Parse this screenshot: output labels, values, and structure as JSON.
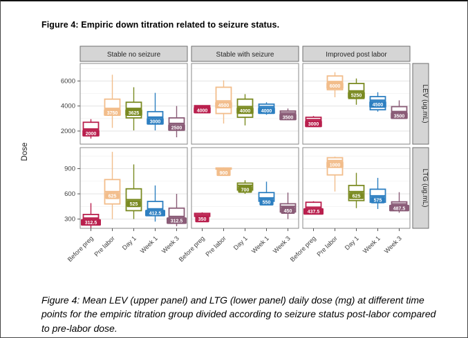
{
  "page": {
    "title": "Figure 4: Empiric down titration related to seizure status.",
    "caption": "Figure 4: Mean LEV (upper panel) and LTG (lower panel) daily dose (mg) at different time points for the empiric titration group divided according to seizure status post-labor compared to pre-labor dose."
  },
  "chart_data": {
    "type": "boxplot",
    "title": "Figure 4: Empiric down titration related to seizure status.",
    "ylabel": "Dose",
    "xlabel": "",
    "grid": true,
    "legend": "none",
    "x_label_rotation": 45,
    "facet_cols": [
      "Stable no seizure",
      "Stable with seizure",
      "Improved post labor"
    ],
    "facet_rows": [
      "LEV (ug.mL)",
      "LTG (ug.mL)"
    ],
    "x_categories": [
      "Before preg",
      "Pre labor",
      "Day 1",
      "Week 1",
      "Week 3"
    ],
    "category_colors": [
      "#b91f4d",
      "#f2bd8b",
      "#7a8a21",
      "#2d7fc1",
      "#8a5c77"
    ],
    "strip_bg": "#d5d5d5",
    "strip_border": "#6e6e6e",
    "panel_border": "#8a8a8a",
    "grid_major_color": "#e6e6e6",
    "grid_minor_color": "#f2f2f2",
    "axis_text_color": "#3d3d3d",
    "rows": [
      {
        "label": "LEV (ug.mL)",
        "ticks": [
          2000,
          4000,
          6000
        ],
        "range": [
          950,
          7400
        ]
      },
      {
        "label": "LTG (ug.mL)",
        "ticks": [
          300,
          600,
          900
        ],
        "range": [
          190,
          1150
        ]
      }
    ],
    "panels": [
      {
        "row": 0,
        "col": 0,
        "boxes": [
          {
            "low": 1400,
            "q1": 1750,
            "median": 2150,
            "q3": 2700,
            "high": 2950,
            "label": "2000"
          },
          {
            "low": 2250,
            "q1": 3300,
            "median": 3800,
            "q3": 4550,
            "high": 6500,
            "label": "3750"
          },
          {
            "low": 2050,
            "q1": 3050,
            "median": 3800,
            "q3": 4300,
            "high": 5500,
            "label": "3625"
          },
          {
            "low": 2050,
            "q1": 2650,
            "median": 3100,
            "q3": 3550,
            "high": 5050,
            "label": "3000"
          },
          {
            "low": 1500,
            "q1": 2250,
            "median": 2600,
            "q3": 3050,
            "high": 4000,
            "label": "2500"
          }
        ]
      },
      {
        "row": 0,
        "col": 1,
        "boxes": [
          {
            "low": 3930,
            "q1": 3970,
            "median": 4000,
            "q3": 4030,
            "high": 4070,
            "label": "4000"
          },
          {
            "low": 2600,
            "q1": 3400,
            "median": 4400,
            "q3": 5500,
            "high": 6050,
            "label": "4500"
          },
          {
            "low": 2450,
            "q1": 3100,
            "median": 3950,
            "q3": 4550,
            "high": 4950,
            "label": "4000"
          },
          {
            "low": 3300,
            "q1": 3500,
            "median": 3950,
            "q3": 4150,
            "high": 4300,
            "label": "4000"
          },
          {
            "low": 3100,
            "q1": 3300,
            "median": 3450,
            "q3": 3600,
            "high": 3800,
            "label": "3500"
          }
        ]
      },
      {
        "row": 0,
        "col": 2,
        "boxes": [
          {
            "low": 2450,
            "q1": 2600,
            "median": 2900,
            "q3": 3100,
            "high": 3200,
            "label": "3000"
          },
          {
            "low": 4700,
            "q1": 5300,
            "median": 5950,
            "q3": 6400,
            "high": 6700,
            "label": "6000"
          },
          {
            "low": 4100,
            "q1": 4600,
            "median": 5200,
            "q3": 5800,
            "high": 6200,
            "label": "5250"
          },
          {
            "low": 3550,
            "q1": 3700,
            "median": 4450,
            "q3": 4750,
            "high": 5100,
            "label": "4500"
          },
          {
            "low": 3000,
            "q1": 3150,
            "median": 3550,
            "q3": 3950,
            "high": 4450,
            "label": "3500"
          }
        ]
      },
      {
        "row": 1,
        "col": 0,
        "boxes": [
          {
            "low": 190,
            "q1": 255,
            "median": 310,
            "q3": 355,
            "high": 490,
            "label": "312.5"
          },
          {
            "low": 300,
            "q1": 480,
            "median": 625,
            "q3": 770,
            "high": 1100,
            "label": "625"
          },
          {
            "low": 300,
            "q1": 400,
            "median": 530,
            "q3": 660,
            "high": 950,
            "label": "525"
          },
          {
            "low": 270,
            "q1": 350,
            "median": 420,
            "q3": 510,
            "high": 700,
            "label": "412.5"
          },
          {
            "low": 215,
            "q1": 250,
            "median": 330,
            "q3": 430,
            "high": 600,
            "label": "312.5"
          }
        ]
      },
      {
        "row": 1,
        "col": 1,
        "boxes": [
          {
            "low": 320,
            "q1": 332,
            "median": 350,
            "q3": 368,
            "high": 380,
            "label": "350"
          },
          {
            "low": 885,
            "q1": 893,
            "median": 900,
            "q3": 908,
            "high": 916,
            "label": "900"
          },
          {
            "low": 600,
            "q1": 645,
            "median": 700,
            "q3": 728,
            "high": 762,
            "label": "700"
          },
          {
            "low": 498,
            "q1": 512,
            "median": 550,
            "q3": 615,
            "high": 745,
            "label": "550"
          },
          {
            "low": 300,
            "q1": 385,
            "median": 450,
            "q3": 482,
            "high": 615,
            "label": "450"
          }
        ]
      },
      {
        "row": 1,
        "col": 2,
        "boxes": [
          {
            "low": 370,
            "q1": 385,
            "median": 440,
            "q3": 500,
            "high": 512,
            "label": "437.5"
          },
          {
            "low": 628,
            "q1": 825,
            "median": 995,
            "q3": 1030,
            "high": 1042,
            "label": "1000"
          },
          {
            "low": 430,
            "q1": 520,
            "median": 625,
            "q3": 700,
            "high": 850,
            "label": "625"
          },
          {
            "low": 420,
            "q1": 500,
            "median": 575,
            "q3": 655,
            "high": 790,
            "label": "575"
          },
          {
            "low": 375,
            "q1": 420,
            "median": 480,
            "q3": 505,
            "high": 620,
            "label": "487.5"
          }
        ]
      }
    ]
  }
}
